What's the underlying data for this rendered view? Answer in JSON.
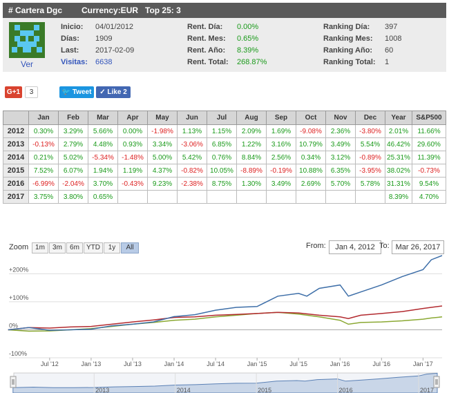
{
  "header": {
    "name": "# Cartera Dgc",
    "currency": "Currency:EUR",
    "top": "Top 25: 3"
  },
  "profile": {
    "avatar_link": "Ver",
    "col1": [
      {
        "label": "Inicio:",
        "value": "04/01/2012",
        "style": ""
      },
      {
        "label": "Días:",
        "value": "1909",
        "style": ""
      },
      {
        "label": "Last:",
        "value": "2017-02-09",
        "style": ""
      },
      {
        "label": "Visitas:",
        "value": "6638",
        "style": "link"
      }
    ],
    "col2": [
      {
        "label": "Rent. Día:",
        "value": "0.00%"
      },
      {
        "label": "Rent. Mes:",
        "value": "0.65%"
      },
      {
        "label": "Rent. Año:",
        "value": "8.39%"
      },
      {
        "label": "Rent. Total:",
        "value": "268.87%"
      }
    ],
    "col3": [
      {
        "label": "Ranking Día:",
        "value": "397"
      },
      {
        "label": "Ranking Mes:",
        "value": "1008"
      },
      {
        "label": "Ranking Año:",
        "value": "60"
      },
      {
        "label": "Ranking Total:",
        "value": "1"
      }
    ]
  },
  "social": {
    "gplus_label": "G+1",
    "gplus_count": "3",
    "tweet_label": "Tweet",
    "like_label": "Like 2"
  },
  "table": {
    "headers": [
      "",
      "Jan",
      "Feb",
      "Mar",
      "Apr",
      "May",
      "Jun",
      "Jul",
      "Aug",
      "Sep",
      "Oct",
      "Nov",
      "Dec",
      "Year",
      "S&P500"
    ],
    "rows": [
      {
        "year": "2012",
        "cells": [
          "0.30%",
          "3.29%",
          "5.66%",
          "0.00%",
          "-1.98%",
          "1.13%",
          "1.15%",
          "2.09%",
          "1.69%",
          "-9.08%",
          "2.36%",
          "-3.80%",
          "2.01%",
          "11.66%"
        ]
      },
      {
        "year": "2013",
        "cells": [
          "-0.13%",
          "2.79%",
          "4.48%",
          "0.93%",
          "3.34%",
          "-3.06%",
          "6.85%",
          "1.22%",
          "3.16%",
          "10.79%",
          "3.49%",
          "5.54%",
          "46.42%",
          "29.60%"
        ]
      },
      {
        "year": "2014",
        "cells": [
          "0.21%",
          "5.02%",
          "-5.34%",
          "-1.48%",
          "5.00%",
          "5.42%",
          "0.76%",
          "8.84%",
          "2.56%",
          "0.34%",
          "3.12%",
          "-0.89%",
          "25.31%",
          "11.39%"
        ]
      },
      {
        "year": "2015",
        "cells": [
          "7.52%",
          "6.07%",
          "1.94%",
          "1.19%",
          "4.37%",
          "-0.82%",
          "10.05%",
          "-8.89%",
          "-0.19%",
          "10.88%",
          "6.35%",
          "-3.95%",
          "38.02%",
          "-0.73%"
        ]
      },
      {
        "year": "2016",
        "cells": [
          "-6.99%",
          "-2.04%",
          "3.70%",
          "-0.43%",
          "9.23%",
          "-2.38%",
          "8.75%",
          "1.30%",
          "3.49%",
          "2.69%",
          "5.70%",
          "5.78%",
          "31.31%",
          "9.54%"
        ]
      },
      {
        "year": "2017",
        "cells": [
          "3.75%",
          "3.80%",
          "0.65%",
          "",
          "",
          "",
          "",
          "",
          "",
          "",
          "",
          "",
          "8.39%",
          "4.70%"
        ]
      }
    ]
  },
  "zoom": {
    "label": "Zoom",
    "buttons": [
      "1m",
      "3m",
      "6m",
      "YTD",
      "1y",
      "All"
    ],
    "active": "All",
    "from_label": "From:",
    "from_value": "Jan 4, 2012",
    "to_label": "To:",
    "to_value": "Mar 26, 2017"
  },
  "chart_data": {
    "type": "line",
    "x_ticks": [
      "Jul '12",
      "Jan '13",
      "Jul '13",
      "Jan '14",
      "Jul '14",
      "Jan '15",
      "Jul '15",
      "Jan '16",
      "Jul '16",
      "Jan '17"
    ],
    "y_ticks": [
      "+200%",
      "+100%",
      "0%",
      "-100%"
    ],
    "y_tick_values": [
      200,
      100,
      0,
      -100
    ],
    "ylim": [
      -100,
      270
    ],
    "x_range": [
      "2012-01-04",
      "2017-03-26"
    ],
    "navigator_labels": [
      "2013",
      "2014",
      "2015",
      "2016",
      "2017"
    ],
    "colors": {
      "portfolio": "#3d6ea8",
      "red": "#b2292e",
      "green": "#8aa832",
      "navigator": "#5a80b5"
    },
    "series": [
      {
        "values": [
          [
            2012.0,
            0
          ],
          [
            2012.25,
            8
          ],
          [
            2012.5,
            -2
          ],
          [
            2012.75,
            0
          ],
          [
            2013.0,
            2
          ],
          [
            2013.25,
            14
          ],
          [
            2013.5,
            20
          ],
          [
            2013.75,
            28
          ],
          [
            2014.0,
            47
          ],
          [
            2014.25,
            54
          ],
          [
            2014.5,
            70
          ],
          [
            2014.75,
            80
          ],
          [
            2015.0,
            83
          ],
          [
            2015.25,
            120
          ],
          [
            2015.5,
            130
          ],
          [
            2015.6,
            120
          ],
          [
            2015.75,
            148
          ],
          [
            2016.0,
            160
          ],
          [
            2016.1,
            120
          ],
          [
            2016.25,
            135
          ],
          [
            2016.5,
            160
          ],
          [
            2016.75,
            190
          ],
          [
            2017.0,
            215
          ],
          [
            2017.1,
            250
          ],
          [
            2017.23,
            265
          ]
        ]
      },
      {
        "values": [
          [
            2012.0,
            0
          ],
          [
            2012.25,
            8
          ],
          [
            2012.5,
            6
          ],
          [
            2012.75,
            10
          ],
          [
            2013.0,
            12
          ],
          [
            2013.25,
            20
          ],
          [
            2013.5,
            28
          ],
          [
            2013.75,
            35
          ],
          [
            2014.0,
            44
          ],
          [
            2014.25,
            46
          ],
          [
            2014.5,
            52
          ],
          [
            2014.75,
            55
          ],
          [
            2015.0,
            58
          ],
          [
            2015.25,
            62
          ],
          [
            2015.5,
            60
          ],
          [
            2015.75,
            52
          ],
          [
            2016.0,
            46
          ],
          [
            2016.1,
            40
          ],
          [
            2016.25,
            52
          ],
          [
            2016.5,
            58
          ],
          [
            2016.75,
            65
          ],
          [
            2017.0,
            76
          ],
          [
            2017.1,
            80
          ],
          [
            2017.23,
            85
          ]
        ]
      },
      {
        "values": [
          [
            2012.0,
            0
          ],
          [
            2012.25,
            -5
          ],
          [
            2012.5,
            -4
          ],
          [
            2012.75,
            0
          ],
          [
            2013.0,
            4
          ],
          [
            2013.25,
            12
          ],
          [
            2013.5,
            20
          ],
          [
            2013.75,
            26
          ],
          [
            2014.0,
            34
          ],
          [
            2014.25,
            38
          ],
          [
            2014.5,
            46
          ],
          [
            2014.75,
            52
          ],
          [
            2015.0,
            58
          ],
          [
            2015.25,
            62
          ],
          [
            2015.5,
            56
          ],
          [
            2015.75,
            46
          ],
          [
            2016.0,
            34
          ],
          [
            2016.1,
            20
          ],
          [
            2016.25,
            26
          ],
          [
            2016.5,
            28
          ],
          [
            2016.75,
            32
          ],
          [
            2017.0,
            38
          ],
          [
            2017.1,
            42
          ],
          [
            2017.23,
            46
          ]
        ]
      }
    ]
  }
}
